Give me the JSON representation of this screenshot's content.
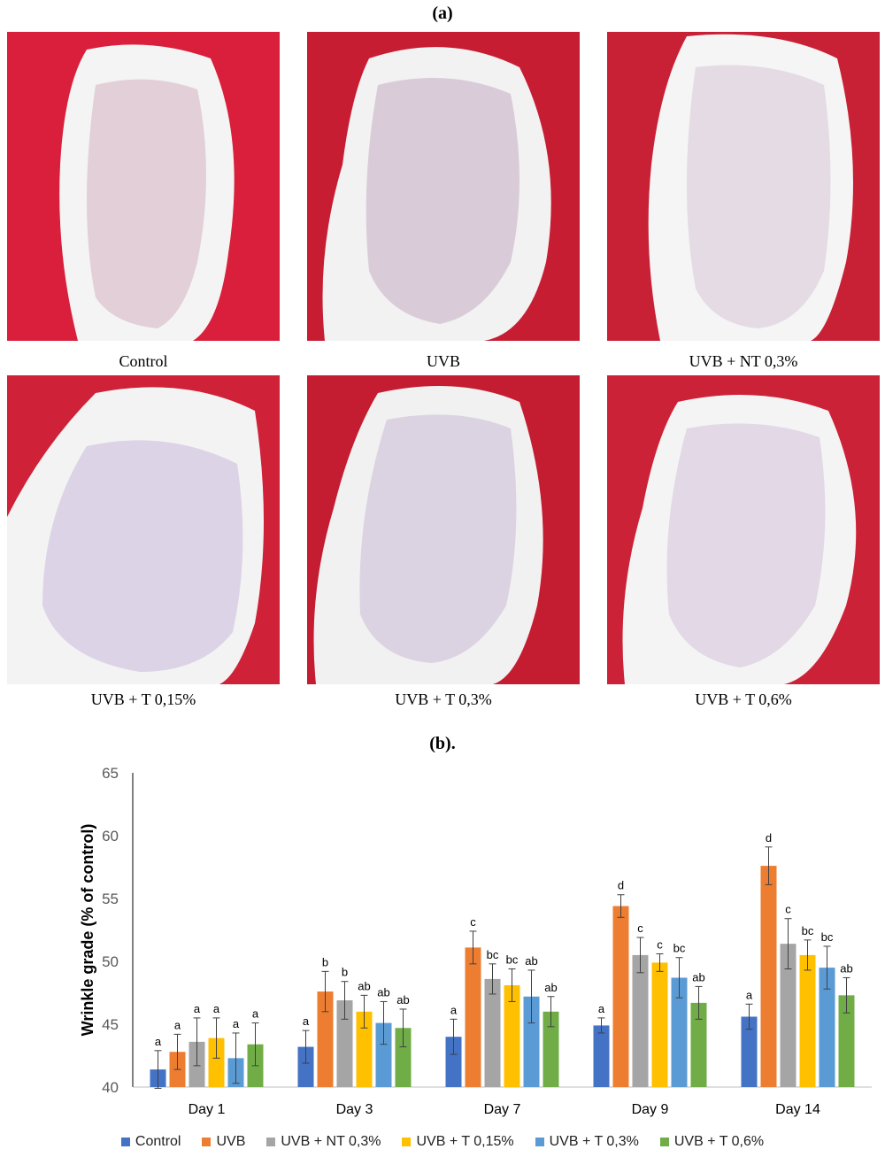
{
  "figure": {
    "panel_a_label": "(a)",
    "panel_b_label": "(b).",
    "photos": [
      {
        "caption": "Control"
      },
      {
        "caption": "UVB"
      },
      {
        "caption": "UVB + NT 0,3%"
      },
      {
        "caption": "UVB + T 0,15%"
      },
      {
        "caption": "UVB + T 0,3%"
      },
      {
        "caption": "UVB + T 0,6%"
      }
    ]
  },
  "chart_data": {
    "type": "bar",
    "ylabel": "Wrinkle grade (% of control)",
    "xlabel": "",
    "ylim": [
      40,
      65
    ],
    "yticks": [
      "40",
      "45",
      "50",
      "55",
      "60",
      "65"
    ],
    "grid": false,
    "legend_position": "bottom",
    "categories": [
      "Day 1",
      "Day 3",
      "Day 7",
      "Day 9",
      "Day 14"
    ],
    "series": [
      {
        "name": "Control",
        "color": "#4472C4",
        "values": [
          41.4,
          43.2,
          44.0,
          44.9,
          45.6
        ],
        "errors": [
          1.5,
          1.3,
          1.4,
          0.6,
          1.0
        ],
        "labels": [
          "a",
          "a",
          "a",
          "a",
          "a"
        ]
      },
      {
        "name": "UVB",
        "color": "#ED7D31",
        "values": [
          42.8,
          47.6,
          51.1,
          54.4,
          57.6
        ],
        "errors": [
          1.4,
          1.6,
          1.3,
          0.9,
          1.5
        ],
        "labels": [
          "a",
          "b",
          "c",
          "d",
          "d"
        ]
      },
      {
        "name": "UVB + NT 0,3%",
        "color": "#A5A5A5",
        "values": [
          43.6,
          46.9,
          48.6,
          50.5,
          51.4
        ],
        "errors": [
          1.9,
          1.5,
          1.2,
          1.4,
          2.0
        ],
        "labels": [
          "a",
          "b",
          "bc",
          "c",
          "c"
        ]
      },
      {
        "name": "UVB + T 0,15%",
        "color": "#FFC000",
        "values": [
          43.9,
          46.0,
          48.1,
          49.9,
          50.5
        ],
        "errors": [
          1.6,
          1.3,
          1.3,
          0.7,
          1.2
        ],
        "labels": [
          "a",
          "ab",
          "bc",
          "c",
          "bc"
        ]
      },
      {
        "name": "UVB + T 0,3%",
        "color": "#5B9BD5",
        "values": [
          42.3,
          45.1,
          47.2,
          48.7,
          49.5
        ],
        "errors": [
          2.0,
          1.7,
          2.1,
          1.6,
          1.7
        ],
        "labels": [
          "a",
          "ab",
          "ab",
          "bc",
          "bc"
        ]
      },
      {
        "name": "UVB + T 0,6%",
        "color": "#70AD47",
        "values": [
          43.4,
          44.7,
          46.0,
          46.7,
          47.3
        ],
        "errors": [
          1.7,
          1.5,
          1.2,
          1.3,
          1.4
        ],
        "labels": [
          "a",
          "ab",
          "ab",
          "ab",
          "ab"
        ]
      }
    ]
  }
}
